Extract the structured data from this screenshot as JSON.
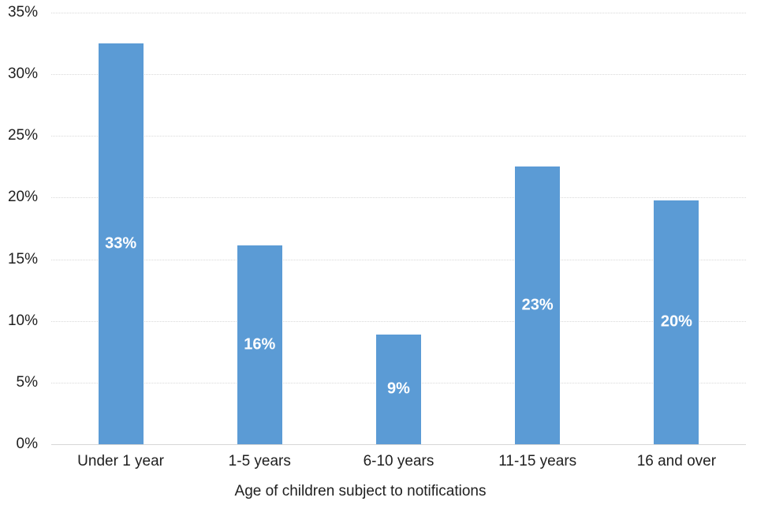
{
  "chart_data": {
    "type": "bar",
    "title": "",
    "xlabel": "Age of children subject to notifications",
    "ylabel": "",
    "categories": [
      "Under 1 year",
      "1-5 years",
      "6-10 years",
      "11-15 years",
      "16 and over"
    ],
    "values": [
      32.5,
      16.1,
      8.9,
      22.5,
      19.8
    ],
    "bar_labels": [
      "33%",
      "16%",
      "9%",
      "23%",
      "20%"
    ],
    "ylim": [
      0,
      35
    ],
    "ytick_step": 5,
    "ytick_labels": [
      "0%",
      "5%",
      "10%",
      "15%",
      "20%",
      "25%",
      "30%",
      "35%"
    ],
    "grid": "horizontal-dotted",
    "legend": "none",
    "colors": {
      "bar": "#5b9bd5",
      "bar_label": "#ffffff",
      "gridline": "#d9d9d9",
      "axis_line": "#d6d6d6",
      "text": "#1f1f1f",
      "background": "#ffffff"
    }
  }
}
